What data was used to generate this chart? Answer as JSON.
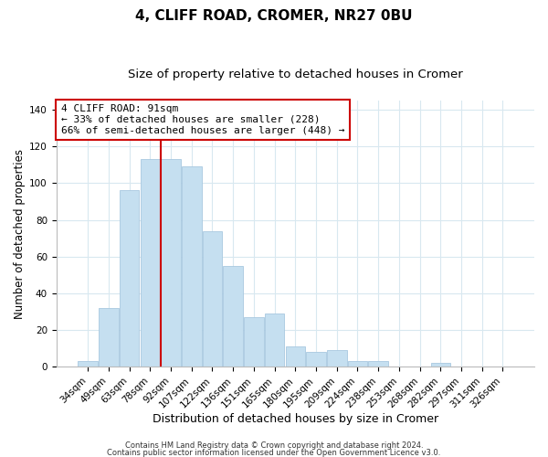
{
  "title": "4, CLIFF ROAD, CROMER, NR27 0BU",
  "subtitle": "Size of property relative to detached houses in Cromer",
  "xlabel": "Distribution of detached houses by size in Cromer",
  "ylabel": "Number of detached properties",
  "bar_labels": [
    "34sqm",
    "49sqm",
    "63sqm",
    "78sqm",
    "92sqm",
    "107sqm",
    "122sqm",
    "136sqm",
    "151sqm",
    "165sqm",
    "180sqm",
    "195sqm",
    "209sqm",
    "224sqm",
    "238sqm",
    "253sqm",
    "268sqm",
    "282sqm",
    "297sqm",
    "311sqm",
    "326sqm"
  ],
  "bar_values": [
    3,
    32,
    96,
    113,
    113,
    109,
    74,
    55,
    27,
    29,
    11,
    8,
    9,
    3,
    3,
    0,
    0,
    2,
    0,
    0,
    0
  ],
  "bar_color": "#c5dff0",
  "bar_edge_color": "#a8c8e0",
  "vline_index": 4,
  "vline_color": "#cc0000",
  "ylim": [
    0,
    145
  ],
  "yticks": [
    0,
    20,
    40,
    60,
    80,
    100,
    120,
    140
  ],
  "annotation_title": "4 CLIFF ROAD: 91sqm",
  "annotation_line1": "← 33% of detached houses are smaller (228)",
  "annotation_line2": "66% of semi-detached houses are larger (448) →",
  "footer1": "Contains HM Land Registry data © Crown copyright and database right 2024.",
  "footer2": "Contains public sector information licensed under the Open Government Licence v3.0.",
  "background_color": "#ffffff",
  "grid_color": "#d8e8f0",
  "title_fontsize": 11,
  "subtitle_fontsize": 9.5,
  "xlabel_fontsize": 9,
  "ylabel_fontsize": 8.5,
  "tick_fontsize": 7.5,
  "annot_fontsize": 8,
  "footer_fontsize": 6
}
